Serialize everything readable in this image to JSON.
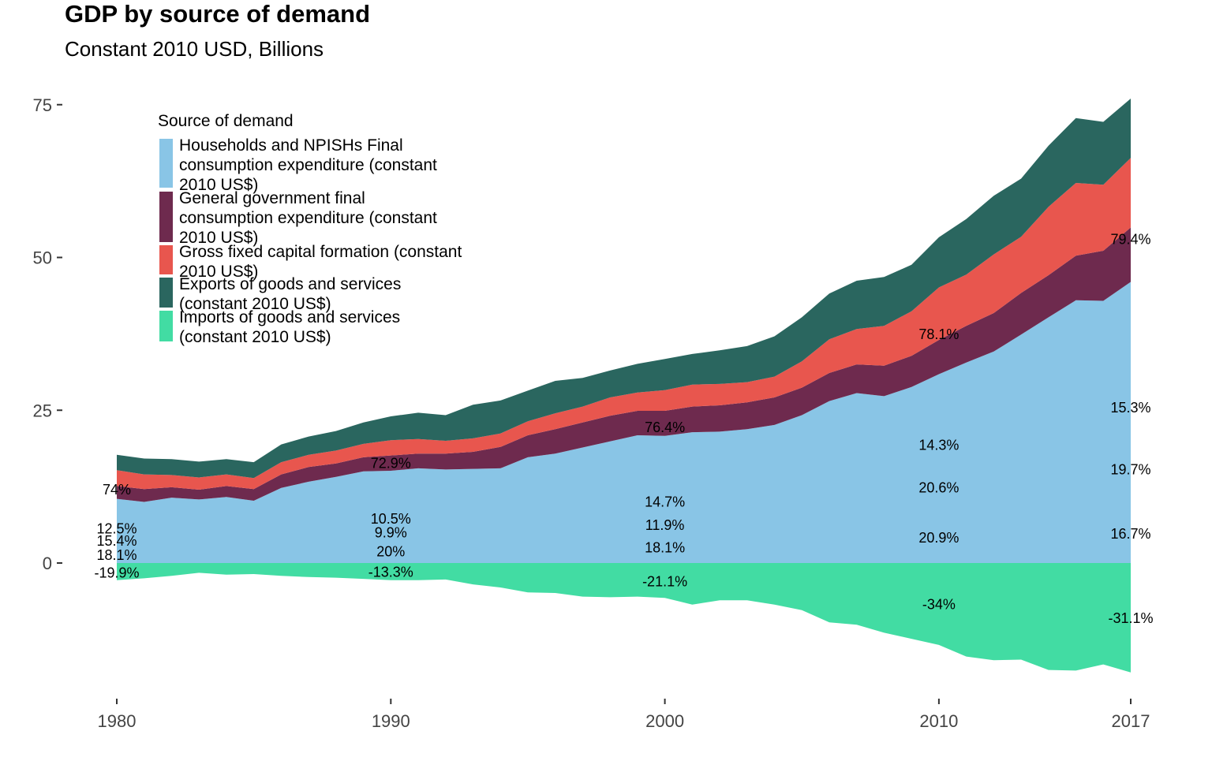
{
  "chart_data": {
    "type": "area",
    "title": "GDP by source of demand",
    "subtitle": "Constant 2010 USD, Billions",
    "xlabel": "",
    "ylabel": "",
    "xlim": [
      1980,
      2017
    ],
    "ylim": [
      -20,
      75
    ],
    "x_ticks": [
      "1980",
      "1990",
      "2000",
      "2010",
      "2017"
    ],
    "y_ticks": [
      "75",
      "50",
      "25",
      "0"
    ],
    "grid": false,
    "legend": {
      "title": "Source of demand",
      "placement": "top-left"
    },
    "x": [
      1980,
      1981,
      1982,
      1983,
      1984,
      1985,
      1986,
      1987,
      1988,
      1989,
      1990,
      1991,
      1992,
      1993,
      1994,
      1995,
      1996,
      1997,
      1998,
      1999,
      2000,
      2001,
      2002,
      2003,
      2004,
      2005,
      2006,
      2007,
      2008,
      2009,
      2010,
      2011,
      2012,
      2013,
      2014,
      2015,
      2016,
      2017
    ],
    "series": [
      {
        "name": "Households and NPISHs Final consumption expenditure (constant 2010 US$)",
        "color": "#89C5E6",
        "values": [
          10.5,
          10.0,
          10.7,
          10.4,
          10.8,
          10.2,
          12.3,
          13.3,
          14.1,
          15.0,
          15.1,
          15.5,
          15.3,
          15.4,
          15.5,
          17.3,
          17.9,
          18.9,
          19.9,
          20.9,
          20.8,
          21.4,
          21.5,
          21.9,
          22.6,
          24.2,
          26.5,
          27.8,
          27.3,
          28.8,
          30.9,
          32.8,
          34.6,
          37.4,
          40.2,
          43.0,
          42.9,
          46.0
        ]
      },
      {
        "name": "General government final consumption expenditure (constant 2010 US$)",
        "color": "#6E2A4E",
        "values": [
          2.1,
          2.1,
          1.7,
          1.6,
          1.8,
          1.9,
          2.2,
          2.4,
          2.2,
          2.3,
          2.5,
          2.4,
          2.6,
          2.8,
          3.5,
          3.6,
          4.0,
          4.1,
          4.2,
          4.0,
          4.1,
          4.2,
          4.3,
          4.4,
          4.5,
          4.5,
          4.6,
          4.7,
          5.0,
          5.1,
          5.6,
          6.0,
          6.3,
          6.8,
          6.9,
          7.3,
          8.2,
          8.9
        ]
      },
      {
        "name": "Gross fixed capital formation (constant 2010 US$)",
        "color": "#E8564E",
        "values": [
          2.6,
          2.4,
          2.0,
          2.0,
          1.9,
          1.8,
          2.0,
          2.0,
          2.1,
          2.2,
          2.5,
          2.4,
          2.1,
          2.2,
          2.2,
          2.3,
          2.6,
          2.6,
          3.0,
          3.0,
          3.4,
          3.6,
          3.5,
          3.3,
          3.4,
          4.3,
          5.5,
          5.8,
          6.5,
          7.3,
          8.6,
          8.4,
          9.6,
          9.2,
          11.2,
          11.9,
          10.8,
          11.4
        ]
      },
      {
        "name": "Exports of goods and services (constant 2010 US$)",
        "color": "#2A665F",
        "values": [
          2.5,
          2.6,
          2.6,
          2.6,
          2.5,
          2.6,
          2.9,
          3.0,
          3.2,
          3.5,
          3.9,
          4.3,
          4.2,
          5.5,
          5.4,
          5.0,
          5.3,
          4.7,
          4.4,
          4.7,
          5.1,
          5.0,
          5.5,
          5.9,
          6.6,
          7.2,
          7.5,
          7.9,
          8.0,
          7.6,
          8.2,
          9.1,
          9.6,
          9.5,
          10.0,
          10.6,
          10.3,
          9.7
        ]
      },
      {
        "name": "Imports of goods and services (constant 2010 US$)",
        "color": "#42DCA3",
        "values": [
          -2.8,
          -2.5,
          -2.1,
          -1.6,
          -1.9,
          -1.8,
          -2.1,
          -2.3,
          -2.4,
          -2.6,
          -2.8,
          -2.8,
          -2.7,
          -3.5,
          -4.0,
          -4.8,
          -4.9,
          -5.5,
          -5.6,
          -5.5,
          -5.7,
          -6.8,
          -6.1,
          -6.1,
          -6.8,
          -7.7,
          -9.7,
          -10.1,
          -11.4,
          -12.4,
          -13.4,
          -15.3,
          -15.9,
          -15.8,
          -17.5,
          -17.6,
          -16.6,
          -17.9
        ]
      }
    ],
    "annotations": [
      {
        "x": 1980,
        "y": 12.0,
        "text": "74%"
      },
      {
        "x": 1980,
        "y": 5.6,
        "text": "12.5%"
      },
      {
        "x": 1980,
        "y": 3.6,
        "text": "15.4%"
      },
      {
        "x": 1980,
        "y": 1.3,
        "text": "18.1%"
      },
      {
        "x": 1980,
        "y": -1.6,
        "text": "-19.9%"
      },
      {
        "x": 1990,
        "y": 16.3,
        "text": "72.9%"
      },
      {
        "x": 1990,
        "y": 7.2,
        "text": "10.5%"
      },
      {
        "x": 1990,
        "y": 5.0,
        "text": "9.9%"
      },
      {
        "x": 1990,
        "y": 1.9,
        "text": "20%"
      },
      {
        "x": 1990,
        "y": -1.5,
        "text": "-13.3%"
      },
      {
        "x": 2000,
        "y": 22.2,
        "text": "76.4%"
      },
      {
        "x": 2000,
        "y": 10.0,
        "text": "14.7%"
      },
      {
        "x": 2000,
        "y": 6.2,
        "text": "11.9%"
      },
      {
        "x": 2000,
        "y": 2.5,
        "text": "18.1%"
      },
      {
        "x": 2000,
        "y": -3.0,
        "text": "-21.1%"
      },
      {
        "x": 2010,
        "y": 37.4,
        "text": "78.1%"
      },
      {
        "x": 2010,
        "y": 19.3,
        "text": "14.3%"
      },
      {
        "x": 2010,
        "y": 12.3,
        "text": "20.6%"
      },
      {
        "x": 2010,
        "y": 4.1,
        "text": "20.9%"
      },
      {
        "x": 2010,
        "y": -6.8,
        "text": "-34%"
      },
      {
        "x": 2017,
        "y": 53.0,
        "text": "79.4%"
      },
      {
        "x": 2017,
        "y": 25.4,
        "text": "15.3%"
      },
      {
        "x": 2017,
        "y": 15.3,
        "text": "19.7%"
      },
      {
        "x": 2017,
        "y": 4.8,
        "text": "16.7%"
      },
      {
        "x": 2017,
        "y": -9.0,
        "text": "-31.1%"
      }
    ]
  }
}
